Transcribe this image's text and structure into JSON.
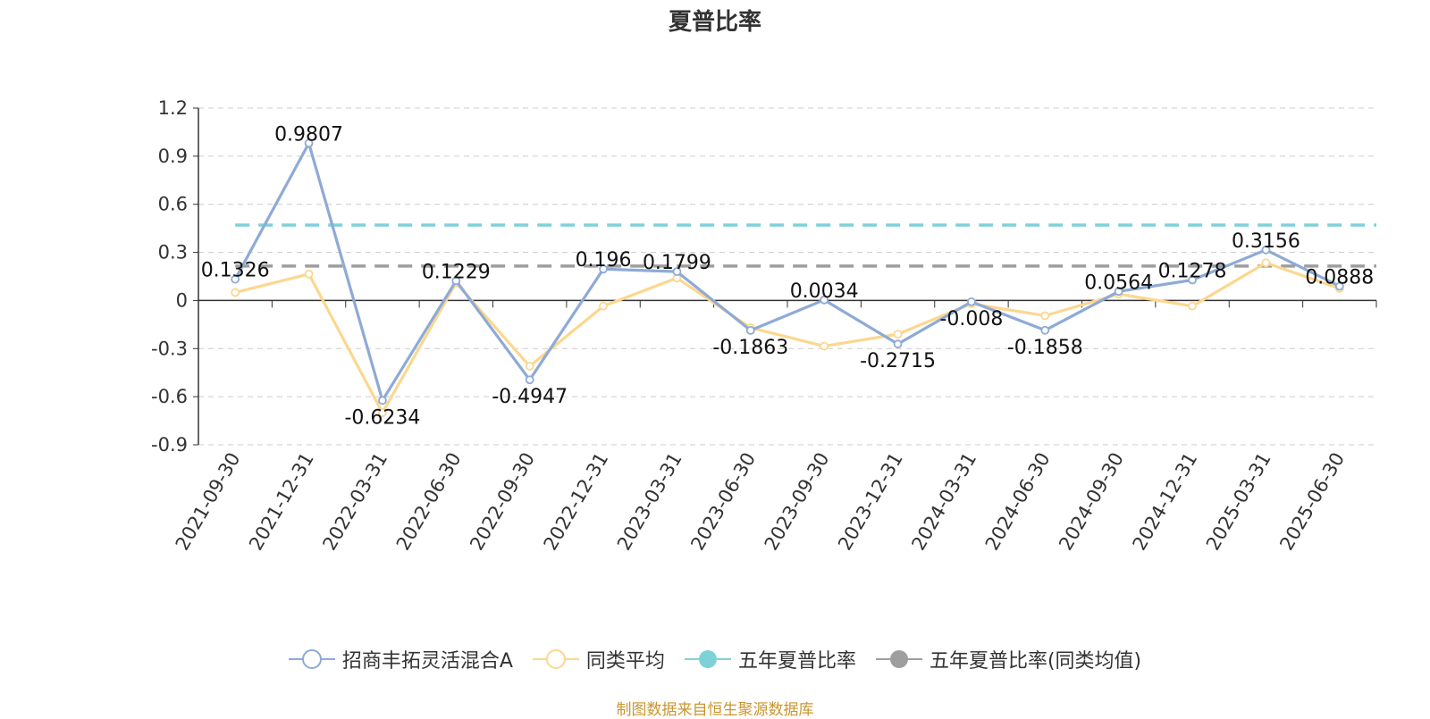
{
  "colors": {
    "series_fund": "#8eaad6",
    "series_peer": "#fbd78f",
    "ref_five_year": "#7fd1d8",
    "ref_five_year_peer": "#9e9e9e",
    "axis": "#333333",
    "grid": "#cccccc",
    "source": "#c9962e"
  },
  "legend": {
    "items": [
      {
        "label": "招商丰拓灵活混合A",
        "color": "#8eaad6",
        "marker": "circle-hollow-line"
      },
      {
        "label": "同类平均",
        "color": "#fbd78f",
        "marker": "circle-hollow-line"
      },
      {
        "label": "五年夏普比率",
        "color": "#7fd1d8",
        "marker": "circle-filled-line"
      },
      {
        "label": "五年夏普比率(同类均值)",
        "color": "#9e9e9e",
        "marker": "circle-filled-line"
      }
    ]
  },
  "source_note": "制图数据来自恒生聚源数据库",
  "chart_data": {
    "type": "line",
    "title": "夏普比率",
    "xlabel": "",
    "ylabel": "",
    "categories": [
      "2021-09-30",
      "2021-12-31",
      "2022-03-31",
      "2022-06-30",
      "2022-09-30",
      "2022-12-31",
      "2023-03-31",
      "2023-06-30",
      "2023-09-30",
      "2023-12-31",
      "2024-03-31",
      "2024-06-30",
      "2024-09-30",
      "2024-12-31",
      "2025-03-31",
      "2025-06-30"
    ],
    "ylim": [
      -0.9,
      1.2
    ],
    "yticks": [
      -0.9,
      -0.6,
      -0.3,
      0,
      0.3,
      0.6,
      0.9,
      1.2
    ],
    "ytick_labels": [
      "-0.9",
      "-0.6",
      "-0.3",
      "0",
      "0.3",
      "0.6",
      "0.9",
      "1.2"
    ],
    "grid": true,
    "legend_position": "bottom",
    "series": [
      {
        "name": "招商丰拓灵活混合A",
        "values": [
          0.1326,
          0.9807,
          -0.6234,
          0.1229,
          -0.4947,
          0.196,
          0.1799,
          -0.1863,
          0.0034,
          -0.2715,
          -0.008,
          -0.1858,
          0.0564,
          0.1278,
          0.3156,
          0.0888
        ],
        "data_labels": [
          "0.1326",
          "0.9807",
          "-0.6234",
          "0.1229",
          "-0.4947",
          "0.196",
          "0.1799",
          "-0.1863",
          "0.0034",
          "-0.2715",
          "-0.008",
          "-0.1858",
          "0.0564",
          "0.1278",
          "0.3156",
          "0.0888"
        ]
      },
      {
        "name": "同类平均",
        "values": [
          0.05,
          0.165,
          -0.7,
          0.11,
          -0.41,
          -0.035,
          0.14,
          -0.17,
          -0.285,
          -0.21,
          -0.02,
          -0.095,
          0.04,
          -0.035,
          0.235,
          0.075
        ]
      }
    ],
    "reference_lines": [
      {
        "name": "五年夏普比率",
        "value": 0.47
      },
      {
        "name": "五年夏普比率(同类均值)",
        "value": 0.215
      }
    ]
  }
}
